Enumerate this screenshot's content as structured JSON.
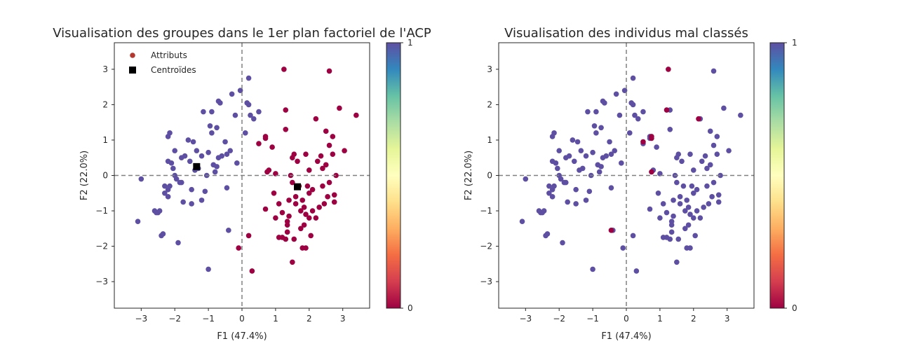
{
  "colors": {
    "class_0": "#9e0142",
    "class_1": "#5e4fa2",
    "centroid": "#000000",
    "legend_attr": "#b2372e"
  },
  "colorbar": {
    "low_label": "0",
    "high_label": "1"
  },
  "chart_data": [
    {
      "type": "scatter",
      "title": "Visualisation des groupes dans le 1er plan factoriel de l'ACP",
      "xlabel": "F1 (47.4%)",
      "ylabel": "F2 (22.0%)",
      "xlim": [
        -3.8,
        3.8
      ],
      "ylim": [
        -3.75,
        3.75
      ],
      "xticks": [
        -3,
        -2,
        -1,
        0,
        1,
        2,
        3
      ],
      "yticks": [
        -3,
        -2,
        -1,
        0,
        1,
        2,
        3
      ],
      "reference_lines": {
        "x": 0,
        "y": 0
      },
      "legend": {
        "position": "upper-left",
        "entries": [
          "Attributs",
          "Centroïdes"
        ]
      },
      "series": [
        {
          "name": "Attributs",
          "class": 1,
          "points": [
            [
              -3.1,
              -1.3
            ],
            [
              -3.0,
              -0.1
            ],
            [
              -2.6,
              -1.0
            ],
            [
              -2.55,
              -1.05
            ],
            [
              -2.5,
              -1.05
            ],
            [
              -2.45,
              -1.0
            ],
            [
              -2.4,
              -1.7
            ],
            [
              -2.35,
              -1.65
            ],
            [
              -2.3,
              -0.3
            ],
            [
              -2.3,
              -0.5
            ],
            [
              -2.2,
              -0.6
            ],
            [
              -2.2,
              -0.4
            ],
            [
              -2.15,
              -0.3
            ],
            [
              -2.2,
              0.4
            ],
            [
              -2.1,
              0.35
            ],
            [
              -2.2,
              1.1
            ],
            [
              -2.15,
              1.2
            ],
            [
              -2.05,
              0.2
            ],
            [
              -2.0,
              0.0
            ],
            [
              -2.0,
              0.7
            ],
            [
              -1.95,
              -0.1
            ],
            [
              -1.9,
              -1.9
            ],
            [
              -1.85,
              -0.2
            ],
            [
              -1.8,
              -0.2
            ],
            [
              -1.8,
              0.5
            ],
            [
              -1.75,
              -0.75
            ],
            [
              -1.7,
              0.55
            ],
            [
              -1.6,
              1.0
            ],
            [
              -1.55,
              0.4
            ],
            [
              -1.5,
              -0.4
            ],
            [
              -1.5,
              -0.8
            ],
            [
              -1.45,
              0.95
            ],
            [
              -1.4,
              0.15
            ],
            [
              -1.35,
              0.7
            ],
            [
              -1.3,
              0.2
            ],
            [
              -1.2,
              -0.7
            ],
            [
              -1.2,
              0.55
            ],
            [
              -1.15,
              1.8
            ],
            [
              -1.1,
              -0.45
            ],
            [
              -1.05,
              0.0
            ],
            [
              -1.0,
              -2.65
            ],
            [
              -1.0,
              0.65
            ],
            [
              -0.95,
              1.4
            ],
            [
              -0.9,
              1.2
            ],
            [
              -0.9,
              1.8
            ],
            [
              -0.85,
              0.3
            ],
            [
              -0.8,
              0.1
            ],
            [
              -0.75,
              1.35
            ],
            [
              -0.75,
              0.25
            ],
            [
              -0.7,
              0.5
            ],
            [
              -0.7,
              2.1
            ],
            [
              -0.65,
              2.05
            ],
            [
              -0.6,
              0.55
            ],
            [
              -0.5,
              0.95
            ],
            [
              -0.45,
              -0.35
            ],
            [
              -0.45,
              0.6
            ],
            [
              -0.4,
              -1.55
            ],
            [
              -0.35,
              0.7
            ],
            [
              -0.3,
              2.3
            ],
            [
              -0.2,
              1.7
            ],
            [
              -0.15,
              0.35
            ],
            [
              -0.05,
              2.4
            ],
            [
              0.1,
              1.2
            ],
            [
              0.15,
              2.05
            ],
            [
              0.2,
              2.0
            ],
            [
              0.25,
              1.7
            ],
            [
              0.35,
              1.6
            ],
            [
              0.5,
              1.8
            ],
            [
              0.2,
              2.75
            ]
          ],
          "mis_points": []
        },
        {
          "name": "Attributs",
          "class": 0,
          "points": [
            [
              -0.1,
              -2.05
            ],
            [
              0.2,
              -1.7
            ],
            [
              0.3,
              -2.7
            ],
            [
              0.5,
              0.9
            ],
            [
              0.7,
              1.05
            ],
            [
              0.7,
              1.1
            ],
            [
              0.7,
              -0.95
            ],
            [
              0.75,
              0.1
            ],
            [
              0.8,
              0.15
            ],
            [
              0.9,
              0.8
            ],
            [
              0.95,
              -0.5
            ],
            [
              1.0,
              0.05
            ],
            [
              1.0,
              -1.2
            ],
            [
              1.1,
              -1.75
            ],
            [
              1.1,
              -0.8
            ],
            [
              1.2,
              -1.75
            ],
            [
              1.2,
              -1.05
            ],
            [
              1.25,
              3.0
            ],
            [
              1.3,
              1.85
            ],
            [
              1.3,
              1.3
            ],
            [
              1.3,
              -1.8
            ],
            [
              1.35,
              -1.4
            ],
            [
              1.35,
              -1.6
            ],
            [
              1.35,
              -1.3
            ],
            [
              1.4,
              -1.15
            ],
            [
              1.4,
              -0.7
            ],
            [
              1.45,
              0.0
            ],
            [
              1.5,
              0.5
            ],
            [
              1.5,
              -0.2
            ],
            [
              1.5,
              -2.45
            ],
            [
              1.55,
              0.6
            ],
            [
              1.55,
              -1.8
            ],
            [
              1.6,
              -0.6
            ],
            [
              1.6,
              -0.8
            ],
            [
              1.65,
              0.4
            ],
            [
              1.7,
              -0.3
            ],
            [
              1.75,
              -1.0
            ],
            [
              1.75,
              -1.5
            ],
            [
              1.8,
              -0.7
            ],
            [
              1.8,
              -2.05
            ],
            [
              1.85,
              -0.9
            ],
            [
              1.85,
              -1.4
            ],
            [
              1.9,
              0.6
            ],
            [
              1.9,
              -1.1
            ],
            [
              1.9,
              -2.05
            ],
            [
              1.95,
              -0.3
            ],
            [
              2.0,
              0.15
            ],
            [
              2.0,
              -0.5
            ],
            [
              2.0,
              -1.2
            ],
            [
              2.05,
              -1.7
            ],
            [
              2.1,
              -0.4
            ],
            [
              2.1,
              -1.0
            ],
            [
              2.2,
              1.6
            ],
            [
              2.2,
              -1.2
            ],
            [
              2.25,
              0.4
            ],
            [
              2.3,
              -0.9
            ],
            [
              2.35,
              0.55
            ],
            [
              2.4,
              0.2
            ],
            [
              2.4,
              -0.3
            ],
            [
              2.45,
              -0.8
            ],
            [
              2.5,
              1.25
            ],
            [
              2.5,
              0.3
            ],
            [
              2.55,
              -0.6
            ],
            [
              2.6,
              0.85
            ],
            [
              2.6,
              2.95
            ],
            [
              2.6,
              -0.2
            ],
            [
              2.7,
              0.6
            ],
            [
              2.75,
              -0.55
            ],
            [
              2.75,
              -0.75
            ],
            [
              2.8,
              0.0
            ],
            [
              2.9,
              1.9
            ],
            [
              3.05,
              0.7
            ],
            [
              3.4,
              1.7
            ],
            [
              2.7,
              1.1
            ]
          ],
          "mis_points": []
        },
        {
          "name": "Centroïdes",
          "points": [
            [
              -1.35,
              0.25
            ],
            [
              1.65,
              -0.32
            ]
          ]
        }
      ]
    },
    {
      "type": "scatter",
      "title": "Visualisation des individus mal classés",
      "xlabel": "F1 (47.4%)",
      "ylabel": "F2 (22.0%)",
      "xlim": [
        -3.8,
        3.8
      ],
      "ylim": [
        -3.75,
        3.75
      ],
      "xticks": [
        -3,
        -2,
        -1,
        0,
        1,
        2,
        3
      ],
      "yticks": [
        -3,
        -2,
        -1,
        0,
        1,
        2,
        3
      ],
      "reference_lines": {
        "x": 0,
        "y": 0
      },
      "series": [
        {
          "class": 1,
          "points": "same-as-left-all"
        },
        {
          "class": 0,
          "points": [
            [
              -0.45,
              -1.55
            ],
            [
              0.5,
              0.95
            ],
            [
              0.75,
              1.05
            ],
            [
              0.75,
              1.1
            ],
            [
              0.75,
              0.1
            ],
            [
              1.2,
              1.85
            ],
            [
              1.25,
              3.0
            ],
            [
              2.15,
              1.6
            ]
          ]
        }
      ]
    }
  ]
}
